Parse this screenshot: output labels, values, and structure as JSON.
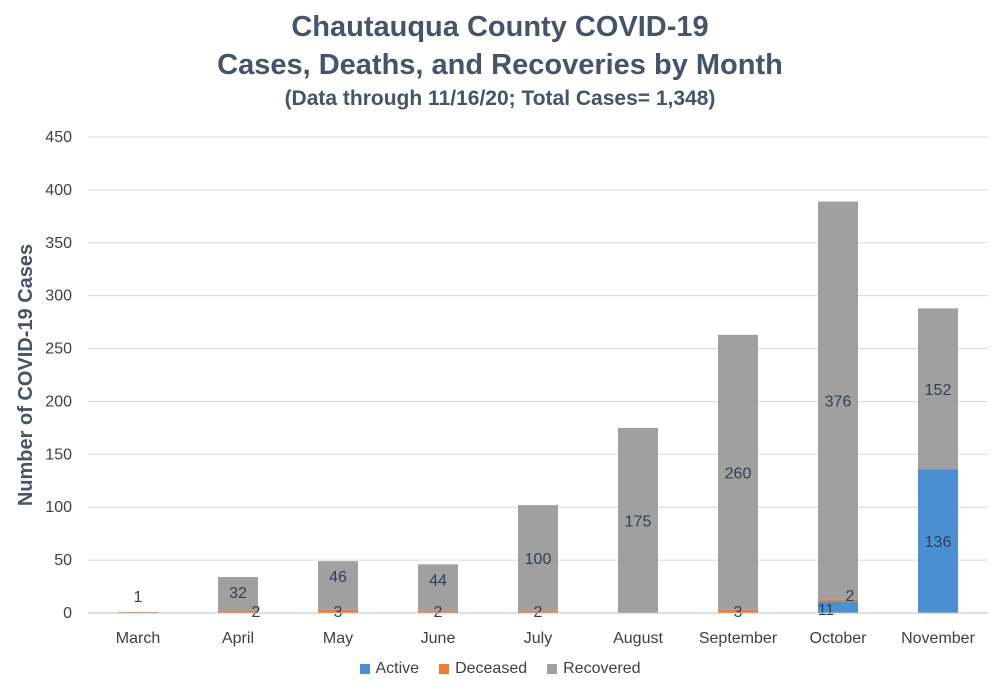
{
  "colors": {
    "Active": "#4a90d2",
    "Deceased": "#ed7d31",
    "Recovered": "#a0a0a0",
    "grid": "#d9d9d9",
    "axis": "#bfbfbf"
  },
  "chart_data": {
    "type": "bar",
    "stacked": true,
    "title": "Chautauqua County COVID-19",
    "title_line2": "Cases, Deaths, and Recoveries by Month",
    "subtitle": "(Data through 11/16/20; Total Cases= 1,348)",
    "ylabel": "Number of COVID-19 Cases",
    "xlabel": "",
    "ylim": [
      0,
      450
    ],
    "yticks": [
      "0",
      "50",
      "100",
      "150",
      "200",
      "250",
      "300",
      "350",
      "400",
      "450"
    ],
    "grid": true,
    "legend_position": "bottom",
    "categories": [
      "March",
      "April",
      "May",
      "June",
      "July",
      "August",
      "September",
      "October",
      "November"
    ],
    "series": [
      {
        "name": "Active",
        "values": [
          0,
          0,
          0,
          0,
          0,
          0,
          0,
          11,
          136
        ],
        "labels": [
          "",
          "",
          "",
          "",
          "",
          "",
          "",
          "11",
          "136"
        ]
      },
      {
        "name": "Deceased",
        "values": [
          1,
          2,
          3,
          2,
          2,
          0,
          3,
          2,
          0
        ],
        "labels": [
          "1",
          "2",
          "3",
          "2",
          "2",
          "",
          "3",
          "2",
          ""
        ]
      },
      {
        "name": "Recovered",
        "values": [
          0,
          32,
          46,
          44,
          100,
          175,
          260,
          376,
          152
        ],
        "labels": [
          "",
          "32",
          "46",
          "44",
          "100",
          "175",
          "260",
          "376",
          "152"
        ]
      }
    ]
  }
}
